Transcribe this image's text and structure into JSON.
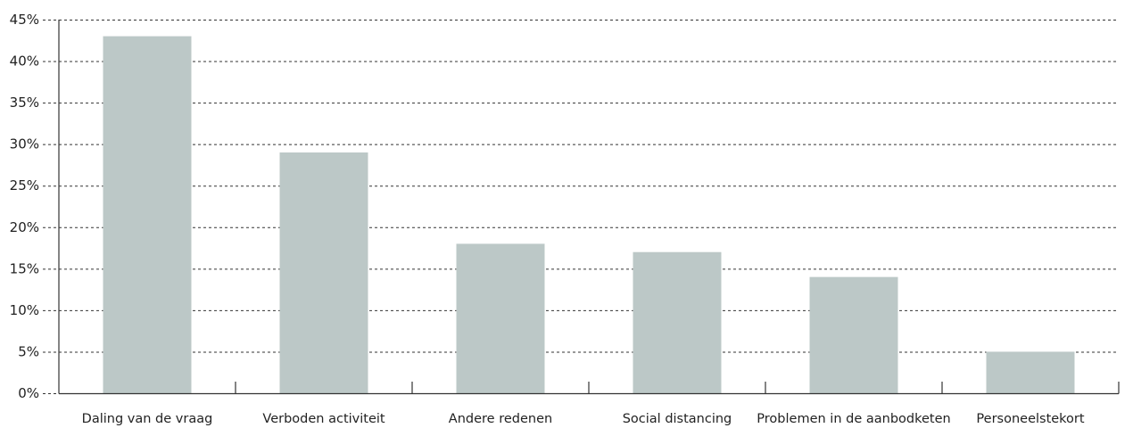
{
  "chart_data": {
    "type": "bar",
    "categories": [
      "Daling van de vraag",
      "Verboden activiteit",
      "Andere redenen",
      "Social distancing",
      "Problemen in de aanbodketen",
      "Personeelstekort"
    ],
    "series": [
      {
        "values": [
          43,
          29,
          18,
          17,
          14,
          5
        ]
      }
    ],
    "ylim": [
      0,
      45
    ],
    "y_ticks": [
      0,
      5,
      10,
      15,
      20,
      25,
      30,
      35,
      40,
      45
    ],
    "y_tick_labels": [
      "0%",
      "5%",
      "10%",
      "15%",
      "20%",
      "25%",
      "30%",
      "35%",
      "40%",
      "45%"
    ],
    "grid": true,
    "legend": "none",
    "bar_color": "#bcc8c7",
    "grid_color": "#333333"
  }
}
